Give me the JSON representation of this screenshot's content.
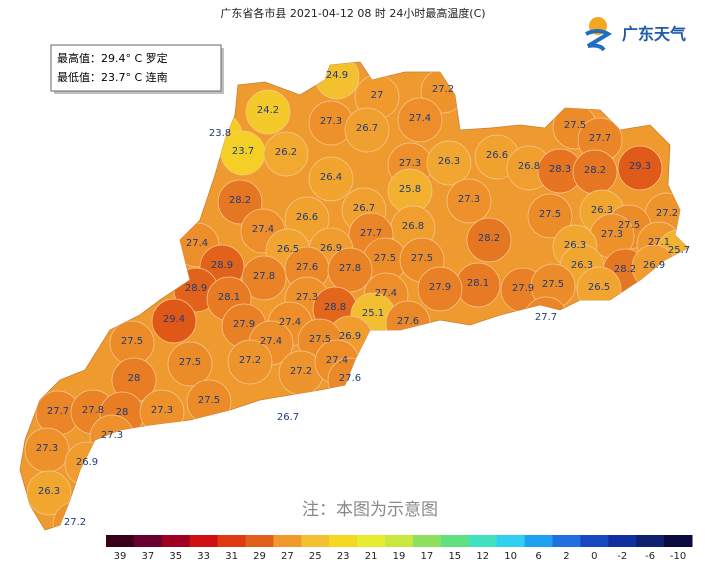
{
  "header": {
    "title": "广东省各市县 2021-04-12 08 时 24小时最高温度(C)",
    "logo": "广东天气"
  },
  "summary": {
    "max": "最高值：29.4° C 罗定",
    "min": "最低值：23.7° C 连南"
  },
  "note": "注：本图为示意图",
  "temperatures": [
    24.9,
    24.2,
    27,
    27.2,
    27.3,
    26.7,
    27.4,
    23.8,
    23.7,
    26.2,
    27.3,
    26.3,
    26.6,
    26.8,
    27.5,
    27.7,
    28.3,
    28.2,
    29.3,
    26.4,
    25.8,
    27.3,
    28.2,
    26.6,
    26.7,
    26.8,
    27.5,
    26.3,
    27.2,
    27.4,
    27.7,
    28.2,
    27.5,
    27.3,
    27.1,
    25.7,
    26.3,
    27.4,
    26.5,
    26.9,
    27.5,
    27.5,
    26.3,
    28.2,
    26.9,
    28.9,
    27.8,
    27.6,
    27.8,
    28.1,
    27.9,
    27.9,
    27.5,
    26.5,
    28.9,
    28.1,
    27.3,
    27.4,
    29.4,
    28.8,
    25.1,
    27.6,
    27.7,
    27.9,
    27.4,
    26.9,
    27.5,
    27.4,
    27.5,
    27.5,
    27.2,
    27.2,
    27.4,
    28,
    27.6,
    27.5,
    27.7,
    27.8,
    28,
    27.3,
    26.7,
    27.3,
    27.3,
    26.9,
    26.3,
    27.2
  ],
  "legend": {
    "ticks": [
      39,
      37,
      35,
      33,
      31,
      29,
      27,
      25,
      23,
      21,
      19,
      17,
      15,
      12,
      10,
      6,
      2,
      0,
      -2,
      -6,
      -10
    ],
    "colors": [
      "#3a0018",
      "#6a0030",
      "#a00020",
      "#d01010",
      "#e03a12",
      "#e0601a",
      "#f09a2e",
      "#f3c030",
      "#f5d820",
      "#e8ec30",
      "#c8e840",
      "#90e060",
      "#60e080",
      "#40e0c0",
      "#30d0f0",
      "#20a0f0",
      "#2070e0",
      "#1848c0",
      "#1030a0",
      "#102070",
      "#0a0a40"
    ]
  }
}
